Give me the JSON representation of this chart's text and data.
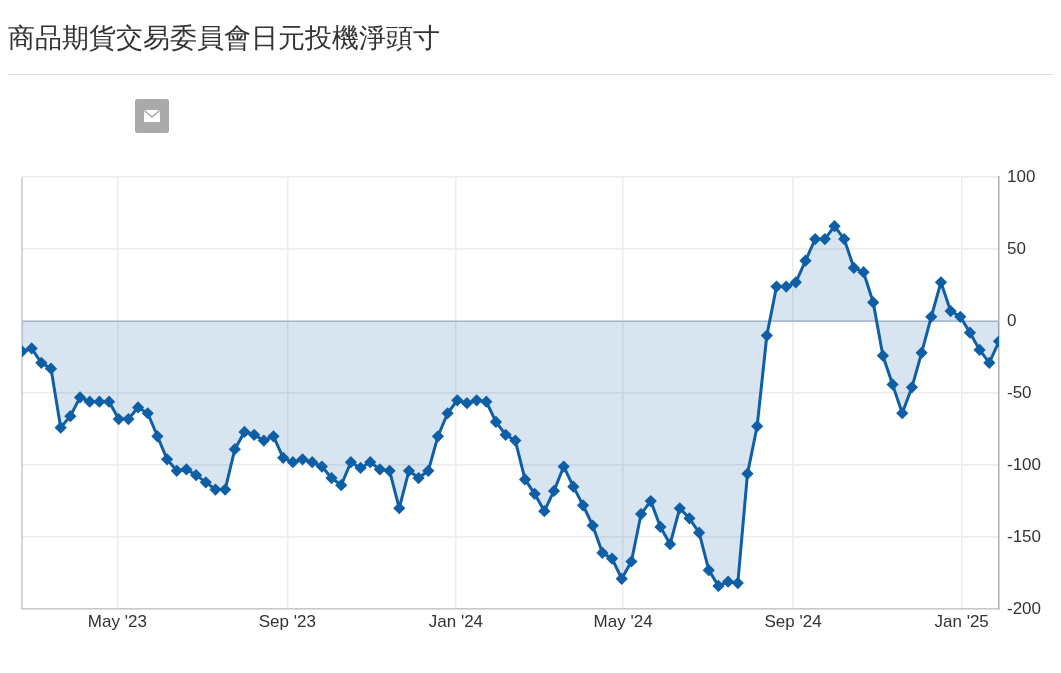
{
  "chart_data": {
    "type": "area",
    "title": "商品期貨交易委員會日元投機淨頭寸",
    "x": [
      "2023-02-21",
      "2023-02-28",
      "2023-03-07",
      "2023-03-14",
      "2023-03-21",
      "2023-03-28",
      "2023-04-04",
      "2023-04-11",
      "2023-04-18",
      "2023-04-25",
      "2023-05-02",
      "2023-05-09",
      "2023-05-16",
      "2023-05-23",
      "2023-05-30",
      "2023-06-06",
      "2023-06-13",
      "2023-06-20",
      "2023-06-27",
      "2023-07-04",
      "2023-07-11",
      "2023-07-18",
      "2023-07-25",
      "2023-08-01",
      "2023-08-08",
      "2023-08-15",
      "2023-08-22",
      "2023-08-29",
      "2023-09-05",
      "2023-09-12",
      "2023-09-19",
      "2023-09-26",
      "2023-10-03",
      "2023-10-10",
      "2023-10-17",
      "2023-10-24",
      "2023-10-31",
      "2023-11-07",
      "2023-11-14",
      "2023-11-21",
      "2023-11-28",
      "2023-12-05",
      "2023-12-12",
      "2023-12-19",
      "2023-12-26",
      "2024-01-02",
      "2024-01-09",
      "2024-01-16",
      "2024-01-23",
      "2024-01-30",
      "2024-02-06",
      "2024-02-13",
      "2024-02-20",
      "2024-02-27",
      "2024-03-05",
      "2024-03-12",
      "2024-03-19",
      "2024-03-26",
      "2024-04-02",
      "2024-04-09",
      "2024-04-16",
      "2024-04-23",
      "2024-04-30",
      "2024-05-07",
      "2024-05-14",
      "2024-05-21",
      "2024-05-28",
      "2024-06-04",
      "2024-06-11",
      "2024-06-18",
      "2024-06-25",
      "2024-07-02",
      "2024-07-09",
      "2024-07-16",
      "2024-07-23",
      "2024-07-30",
      "2024-08-06",
      "2024-08-13",
      "2024-08-20",
      "2024-08-27",
      "2024-09-03",
      "2024-09-10",
      "2024-09-17",
      "2024-09-24",
      "2024-10-01",
      "2024-10-08",
      "2024-10-15",
      "2024-10-22",
      "2024-10-29",
      "2024-11-05",
      "2024-11-12",
      "2024-11-19",
      "2024-11-26",
      "2024-12-03",
      "2024-12-10",
      "2024-12-17",
      "2024-12-24",
      "2024-12-31",
      "2025-01-07",
      "2025-01-14",
      "2025-01-21",
      "2025-01-28"
    ],
    "series": [
      {
        "color": "#0f5fa6",
        "values": [
          -21,
          -19,
          -29,
          -33,
          -74,
          -66,
          -53,
          -56,
          -56,
          -56,
          -68,
          -68,
          -60,
          -64,
          -80,
          -96,
          -104,
          -103,
          -107,
          -112,
          -117,
          -117,
          -89,
          -77,
          -79,
          -83,
          -80,
          -95,
          -98,
          -96,
          -98,
          -101,
          -109,
          -114,
          -98,
          -102,
          -98,
          -103,
          -104,
          -130,
          -104,
          -109,
          -104,
          -80,
          -64,
          -55,
          -57,
          -55,
          -56,
          -70,
          -79,
          -83,
          -110,
          -120,
          -132,
          -118,
          -101,
          -115,
          -128,
          -142,
          -161,
          -165,
          -179,
          -167,
          -134,
          -125,
          -143,
          -155,
          -130,
          -137,
          -147,
          -173,
          -184,
          -181,
          -182,
          -106,
          -73,
          -10,
          24,
          24,
          27,
          42,
          57,
          57,
          66,
          57,
          37,
          34,
          13,
          -24,
          -44,
          -64,
          -46,
          -22,
          3,
          27,
          7,
          3,
          -8,
          -20,
          -29,
          -14
        ]
      }
    ],
    "xlim": [
      "2023-02-21",
      "2025-01-28"
    ],
    "xticks": [
      {
        "value": "2023-05-01",
        "label": "May '23"
      },
      {
        "value": "2023-09-01",
        "label": "Sep '23"
      },
      {
        "value": "2024-01-01",
        "label": "Jan '24"
      },
      {
        "value": "2024-05-01",
        "label": "May '24"
      },
      {
        "value": "2024-09-01",
        "label": "Sep '24"
      },
      {
        "value": "2025-01-01",
        "label": "Jan '25"
      }
    ],
    "ylim": [
      -200,
      100
    ],
    "yticks": [
      -200,
      -150,
      -100,
      -50,
      0,
      50,
      100
    ],
    "ref_lines": [
      {
        "axis": "y",
        "value": 0,
        "color": "#b4c1d1"
      }
    ],
    "grid": true,
    "legend": false,
    "marker": "diamond",
    "line_style": "solid"
  }
}
